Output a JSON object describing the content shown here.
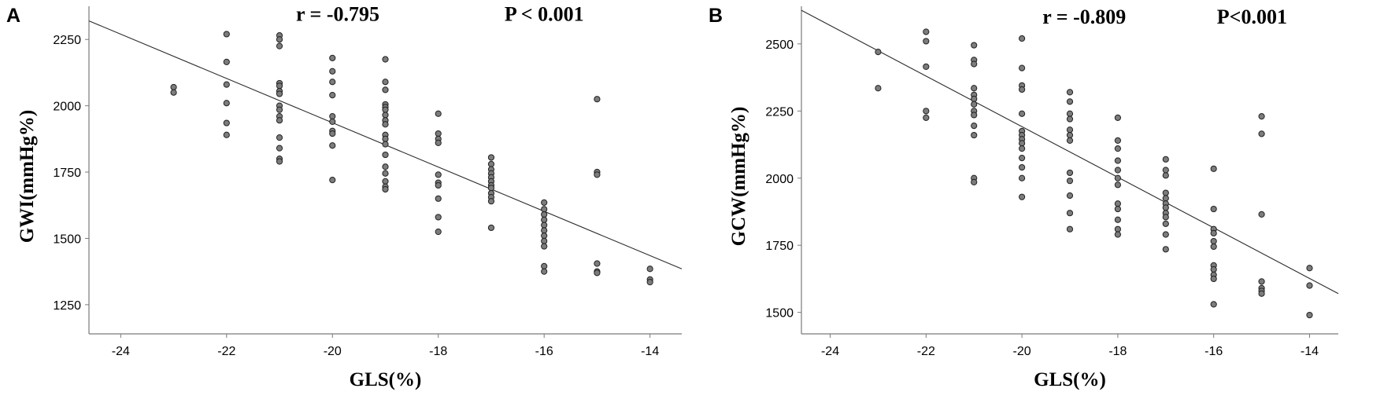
{
  "chart_data": [
    {
      "type": "scatter",
      "panel_label": "A",
      "xlabel": "GLS(%)",
      "ylabel": "GWI(mmHg%)",
      "xlim": [
        -24.6,
        -13.4
      ],
      "ylim": [
        1140,
        2375
      ],
      "xticks": [
        -24,
        -22,
        -20,
        -18,
        -16,
        -14
      ],
      "yticks": [
        1250,
        1500,
        1750,
        2000,
        2250
      ],
      "annotations": [
        {
          "text": "r = -0.795",
          "data_x": -19.9,
          "data_y": 2320
        },
        {
          "text": "P < 0.001",
          "data_x": -16.0,
          "data_y": 2320
        }
      ],
      "fit_line": {
        "x": [
          -24.6,
          -13.4
        ],
        "y": [
          2320,
          1385
        ]
      },
      "points": [
        {
          "x": -23,
          "y": 2070
        },
        {
          "x": -23,
          "y": 2050
        },
        {
          "x": -22,
          "y": 2270
        },
        {
          "x": -22,
          "y": 2165
        },
        {
          "x": -22,
          "y": 2080
        },
        {
          "x": -22,
          "y": 2010
        },
        {
          "x": -22,
          "y": 1935
        },
        {
          "x": -22,
          "y": 1890
        },
        {
          "x": -21,
          "y": 2265
        },
        {
          "x": -21,
          "y": 2250
        },
        {
          "x": -21,
          "y": 2225
        },
        {
          "x": -21,
          "y": 2085
        },
        {
          "x": -21,
          "y": 2075
        },
        {
          "x": -21,
          "y": 2055
        },
        {
          "x": -21,
          "y": 2045
        },
        {
          "x": -21,
          "y": 2000
        },
        {
          "x": -21,
          "y": 1985
        },
        {
          "x": -21,
          "y": 1960
        },
        {
          "x": -21,
          "y": 1945
        },
        {
          "x": -21,
          "y": 1880
        },
        {
          "x": -21,
          "y": 1840
        },
        {
          "x": -21,
          "y": 1800
        },
        {
          "x": -21,
          "y": 1790
        },
        {
          "x": -20,
          "y": 2180
        },
        {
          "x": -20,
          "y": 2130
        },
        {
          "x": -20,
          "y": 2090
        },
        {
          "x": -20,
          "y": 2040
        },
        {
          "x": -20,
          "y": 1960
        },
        {
          "x": -20,
          "y": 1940
        },
        {
          "x": -20,
          "y": 1905
        },
        {
          "x": -20,
          "y": 1895
        },
        {
          "x": -20,
          "y": 1850
        },
        {
          "x": -20,
          "y": 1720
        },
        {
          "x": -19,
          "y": 2175
        },
        {
          "x": -19,
          "y": 2090
        },
        {
          "x": -19,
          "y": 2060
        },
        {
          "x": -19,
          "y": 2005
        },
        {
          "x": -19,
          "y": 1995
        },
        {
          "x": -19,
          "y": 1985
        },
        {
          "x": -19,
          "y": 1965
        },
        {
          "x": -19,
          "y": 1945
        },
        {
          "x": -19,
          "y": 1930
        },
        {
          "x": -19,
          "y": 1890
        },
        {
          "x": -19,
          "y": 1875
        },
        {
          "x": -19,
          "y": 1855
        },
        {
          "x": -19,
          "y": 1815
        },
        {
          "x": -19,
          "y": 1770
        },
        {
          "x": -19,
          "y": 1745
        },
        {
          "x": -19,
          "y": 1715
        },
        {
          "x": -19,
          "y": 1695
        },
        {
          "x": -19,
          "y": 1685
        },
        {
          "x": -18,
          "y": 1970
        },
        {
          "x": -18,
          "y": 1895
        },
        {
          "x": -18,
          "y": 1875
        },
        {
          "x": -18,
          "y": 1860
        },
        {
          "x": -18,
          "y": 1740
        },
        {
          "x": -18,
          "y": 1710
        },
        {
          "x": -18,
          "y": 1700
        },
        {
          "x": -18,
          "y": 1650
        },
        {
          "x": -18,
          "y": 1580
        },
        {
          "x": -18,
          "y": 1525
        },
        {
          "x": -17,
          "y": 1805
        },
        {
          "x": -17,
          "y": 1780
        },
        {
          "x": -17,
          "y": 1760
        },
        {
          "x": -17,
          "y": 1745
        },
        {
          "x": -17,
          "y": 1730
        },
        {
          "x": -17,
          "y": 1715
        },
        {
          "x": -17,
          "y": 1700
        },
        {
          "x": -17,
          "y": 1690
        },
        {
          "x": -17,
          "y": 1670
        },
        {
          "x": -17,
          "y": 1655
        },
        {
          "x": -17,
          "y": 1640
        },
        {
          "x": -17,
          "y": 1540
        },
        {
          "x": -16,
          "y": 1635
        },
        {
          "x": -16,
          "y": 1610
        },
        {
          "x": -16,
          "y": 1590
        },
        {
          "x": -16,
          "y": 1570
        },
        {
          "x": -16,
          "y": 1550
        },
        {
          "x": -16,
          "y": 1530
        },
        {
          "x": -16,
          "y": 1510
        },
        {
          "x": -16,
          "y": 1490
        },
        {
          "x": -16,
          "y": 1470
        },
        {
          "x": -16,
          "y": 1395
        },
        {
          "x": -16,
          "y": 1375
        },
        {
          "x": -15,
          "y": 2025
        },
        {
          "x": -15,
          "y": 1750
        },
        {
          "x": -15,
          "y": 1740
        },
        {
          "x": -15,
          "y": 1405
        },
        {
          "x": -15,
          "y": 1375
        },
        {
          "x": -15,
          "y": 1370
        },
        {
          "x": -14,
          "y": 1385
        },
        {
          "x": -14,
          "y": 1345
        },
        {
          "x": -14,
          "y": 1335
        }
      ]
    },
    {
      "type": "scatter",
      "panel_label": "B",
      "xlabel": "GLS(%)",
      "ylabel": "GCW(mmHg%)",
      "xlim": [
        -24.6,
        -13.4
      ],
      "ylim": [
        1420,
        2640
      ],
      "xticks": [
        -24,
        -22,
        -20,
        -18,
        -16,
        -14
      ],
      "yticks": [
        1500,
        1750,
        2000,
        2250,
        2500
      ],
      "annotations": [
        {
          "text": "r = -0.809",
          "data_x": -18.7,
          "data_y": 2575
        },
        {
          "text": "P<0.001",
          "data_x": -15.2,
          "data_y": 2575
        }
      ],
      "fit_line": {
        "x": [
          -24.6,
          -13.4
        ],
        "y": [
          2625,
          1570
        ]
      },
      "points": [
        {
          "x": -23,
          "y": 2470
        },
        {
          "x": -23,
          "y": 2335
        },
        {
          "x": -22,
          "y": 2545
        },
        {
          "x": -22,
          "y": 2510
        },
        {
          "x": -22,
          "y": 2415
        },
        {
          "x": -22,
          "y": 2250
        },
        {
          "x": -22,
          "y": 2225
        },
        {
          "x": -21,
          "y": 2495
        },
        {
          "x": -21,
          "y": 2440
        },
        {
          "x": -21,
          "y": 2425
        },
        {
          "x": -21,
          "y": 2335
        },
        {
          "x": -21,
          "y": 2310
        },
        {
          "x": -21,
          "y": 2295
        },
        {
          "x": -21,
          "y": 2275
        },
        {
          "x": -21,
          "y": 2250
        },
        {
          "x": -21,
          "y": 2235
        },
        {
          "x": -21,
          "y": 2195
        },
        {
          "x": -21,
          "y": 2160
        },
        {
          "x": -21,
          "y": 2000
        },
        {
          "x": -21,
          "y": 1985
        },
        {
          "x": -20,
          "y": 2520
        },
        {
          "x": -20,
          "y": 2410
        },
        {
          "x": -20,
          "y": 2345
        },
        {
          "x": -20,
          "y": 2330
        },
        {
          "x": -20,
          "y": 2240
        },
        {
          "x": -20,
          "y": 2175
        },
        {
          "x": -20,
          "y": 2160
        },
        {
          "x": -20,
          "y": 2145
        },
        {
          "x": -20,
          "y": 2130
        },
        {
          "x": -20,
          "y": 2110
        },
        {
          "x": -20,
          "y": 2075
        },
        {
          "x": -20,
          "y": 2040
        },
        {
          "x": -20,
          "y": 2000
        },
        {
          "x": -20,
          "y": 1930
        },
        {
          "x": -19,
          "y": 2320
        },
        {
          "x": -19,
          "y": 2285
        },
        {
          "x": -19,
          "y": 2240
        },
        {
          "x": -19,
          "y": 2220
        },
        {
          "x": -19,
          "y": 2180
        },
        {
          "x": -19,
          "y": 2160
        },
        {
          "x": -19,
          "y": 2140
        },
        {
          "x": -19,
          "y": 2020
        },
        {
          "x": -19,
          "y": 1990
        },
        {
          "x": -19,
          "y": 1935
        },
        {
          "x": -19,
          "y": 1870
        },
        {
          "x": -19,
          "y": 1810
        },
        {
          "x": -18,
          "y": 2225
        },
        {
          "x": -18,
          "y": 2140
        },
        {
          "x": -18,
          "y": 2110
        },
        {
          "x": -18,
          "y": 2065
        },
        {
          "x": -18,
          "y": 2030
        },
        {
          "x": -18,
          "y": 2000
        },
        {
          "x": -18,
          "y": 1975
        },
        {
          "x": -18,
          "y": 1905
        },
        {
          "x": -18,
          "y": 1885
        },
        {
          "x": -18,
          "y": 1845
        },
        {
          "x": -18,
          "y": 1810
        },
        {
          "x": -18,
          "y": 1790
        },
        {
          "x": -17,
          "y": 2070
        },
        {
          "x": -17,
          "y": 2030
        },
        {
          "x": -17,
          "y": 2010
        },
        {
          "x": -17,
          "y": 1945
        },
        {
          "x": -17,
          "y": 1925
        },
        {
          "x": -17,
          "y": 1905
        },
        {
          "x": -17,
          "y": 1890
        },
        {
          "x": -17,
          "y": 1870
        },
        {
          "x": -17,
          "y": 1855
        },
        {
          "x": -17,
          "y": 1830
        },
        {
          "x": -17,
          "y": 1790
        },
        {
          "x": -17,
          "y": 1735
        },
        {
          "x": -16,
          "y": 2035
        },
        {
          "x": -16,
          "y": 1885
        },
        {
          "x": -16,
          "y": 1810
        },
        {
          "x": -16,
          "y": 1795
        },
        {
          "x": -16,
          "y": 1765
        },
        {
          "x": -16,
          "y": 1745
        },
        {
          "x": -16,
          "y": 1675
        },
        {
          "x": -16,
          "y": 1660
        },
        {
          "x": -16,
          "y": 1640
        },
        {
          "x": -16,
          "y": 1625
        },
        {
          "x": -16,
          "y": 1530
        },
        {
          "x": -15,
          "y": 2230
        },
        {
          "x": -15,
          "y": 2165
        },
        {
          "x": -15,
          "y": 1865
        },
        {
          "x": -15,
          "y": 1615
        },
        {
          "x": -15,
          "y": 1590
        },
        {
          "x": -15,
          "y": 1580
        },
        {
          "x": -15,
          "y": 1570
        },
        {
          "x": -14,
          "y": 1665
        },
        {
          "x": -14,
          "y": 1600
        },
        {
          "x": -14,
          "y": 1490
        }
      ]
    }
  ]
}
